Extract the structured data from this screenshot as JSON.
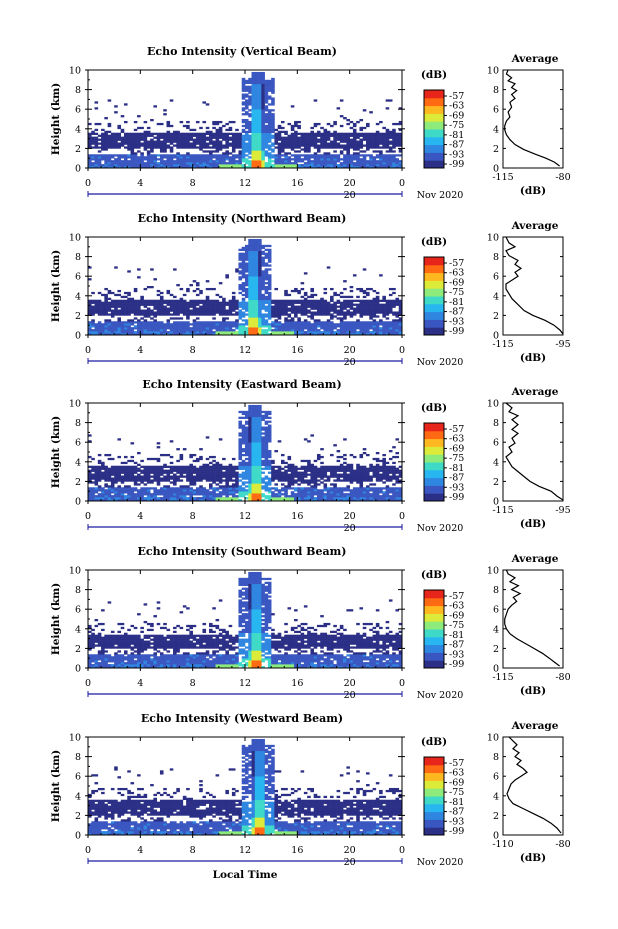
{
  "colorbar_colors": [
    "#2b2f86",
    "#3a56c0",
    "#2f86e0",
    "#27b6f0",
    "#3fd9c8",
    "#8ceb7a",
    "#dcea3a",
    "#ffb81f",
    "#ff6a12",
    "#e8251a"
  ],
  "shared": {
    "date_label": "Nov 2020",
    "day_label": "20",
    "xlabel": "Local Time",
    "ylabel": "Height (km)",
    "unit_label": "(dB)",
    "avg_title": "Average",
    "avg_xlabel": "(dB)"
  },
  "chart_data": [
    {
      "type": "heatmap",
      "title": "Echo Intensity (Vertical Beam)",
      "xlim": [
        0,
        24
      ],
      "ylim": [
        0,
        10
      ],
      "xticks": [
        "0",
        "4",
        "8",
        "12",
        "16",
        "20",
        "0"
      ],
      "yticks": [
        "0",
        "2",
        "4",
        "6",
        "8",
        "10"
      ],
      "colorbar_ticks": [
        "-57",
        "-63",
        "-69",
        "-75",
        "-81",
        "-87",
        "-93",
        "-99"
      ],
      "clutter_top_km": 3.6,
      "plume_x": 12.8,
      "profile": {
        "title": "Average",
        "xticks": [
          "-115",
          "-80"
        ],
        "xlim": [
          -115,
          -80
        ],
        "points": [
          [
            -112,
            10
          ],
          [
            -113,
            9.6
          ],
          [
            -110,
            9.2
          ],
          [
            -112,
            8.9
          ],
          [
            -108,
            8.6
          ],
          [
            -110,
            8.2
          ],
          [
            -107,
            7.9
          ],
          [
            -110,
            7.5
          ],
          [
            -108,
            7.1
          ],
          [
            -111,
            6.7
          ],
          [
            -110,
            6.2
          ],
          [
            -112,
            5.7
          ],
          [
            -111,
            5.2
          ],
          [
            -113,
            4.8
          ],
          [
            -114,
            4.3
          ],
          [
            -114,
            3.9
          ],
          [
            -113,
            3.4
          ],
          [
            -111,
            2.9
          ],
          [
            -108,
            2.4
          ],
          [
            -103,
            1.9
          ],
          [
            -96,
            1.4
          ],
          [
            -90,
            1.0
          ],
          [
            -85,
            0.6
          ],
          [
            -82,
            0.2
          ]
        ]
      }
    },
    {
      "type": "heatmap",
      "title": "Echo Intensity (Northward Beam)",
      "xlim": [
        0,
        24
      ],
      "ylim": [
        0,
        10
      ],
      "xticks": [
        "0",
        "4",
        "8",
        "12",
        "16",
        "20",
        "0"
      ],
      "yticks": [
        "0",
        "2",
        "4",
        "6",
        "8",
        "10"
      ],
      "colorbar_ticks": [
        "-57",
        "-63",
        "-69",
        "-75",
        "-81",
        "-87",
        "-93",
        "-99"
      ],
      "clutter_top_km": 3.6,
      "plume_x": 12.6,
      "profile": {
        "title": "Average",
        "xticks": [
          "-115",
          "-95"
        ],
        "xlim": [
          -115,
          -95
        ],
        "points": [
          [
            -114,
            10
          ],
          [
            -113,
            9.4
          ],
          [
            -111,
            9.0
          ],
          [
            -114,
            8.6
          ],
          [
            -113,
            8.1
          ],
          [
            -110,
            7.6
          ],
          [
            -111,
            7.2
          ],
          [
            -109,
            6.8
          ],
          [
            -111,
            6.4
          ],
          [
            -110,
            6.0
          ],
          [
            -112,
            5.6
          ],
          [
            -114,
            5.2
          ],
          [
            -114,
            4.7
          ],
          [
            -113,
            4.2
          ],
          [
            -112,
            3.7
          ],
          [
            -110,
            3.1
          ],
          [
            -108,
            2.5
          ],
          [
            -105,
            2.0
          ],
          [
            -101,
            1.5
          ],
          [
            -98,
            1.0
          ],
          [
            -96,
            0.5
          ],
          [
            -95,
            0.1
          ]
        ]
      }
    },
    {
      "type": "heatmap",
      "title": "Echo Intensity (Eastward Beam)",
      "xlim": [
        0,
        24
      ],
      "ylim": [
        0,
        10
      ],
      "xticks": [
        "0",
        "4",
        "8",
        "12",
        "16",
        "20",
        "0"
      ],
      "yticks": [
        "0",
        "2",
        "4",
        "6",
        "8",
        "10"
      ],
      "colorbar_ticks": [
        "-57",
        "-63",
        "-69",
        "-75",
        "-81",
        "-87",
        "-93",
        "-99"
      ],
      "clutter_top_km": 3.6,
      "plume_x": 12.7,
      "profile": {
        "title": "Average",
        "xticks": [
          "-115",
          "-95"
        ],
        "xlim": [
          -115,
          -95
        ],
        "points": [
          [
            -114,
            10
          ],
          [
            -112,
            9.5
          ],
          [
            -113,
            9.1
          ],
          [
            -110,
            8.7
          ],
          [
            -112,
            8.3
          ],
          [
            -110,
            7.8
          ],
          [
            -112,
            7.3
          ],
          [
            -110,
            6.9
          ],
          [
            -112,
            6.4
          ],
          [
            -111,
            5.9
          ],
          [
            -113,
            5.5
          ],
          [
            -112,
            5.0
          ],
          [
            -114,
            4.5
          ],
          [
            -113,
            4.0
          ],
          [
            -112,
            3.5
          ],
          [
            -110,
            3.0
          ],
          [
            -108,
            2.5
          ],
          [
            -106,
            2.0
          ],
          [
            -103,
            1.5
          ],
          [
            -99,
            1.0
          ],
          [
            -97,
            0.5
          ],
          [
            -95,
            0.1
          ]
        ]
      }
    },
    {
      "type": "heatmap",
      "title": "Echo Intensity (Southward Beam)",
      "xlim": [
        0,
        24
      ],
      "ylim": [
        0,
        10
      ],
      "xticks": [
        "0",
        "4",
        "8",
        "12",
        "16",
        "20",
        "0"
      ],
      "yticks": [
        "0",
        "2",
        "4",
        "6",
        "8",
        "10"
      ],
      "colorbar_ticks": [
        "-57",
        "-63",
        "-69",
        "-75",
        "-81",
        "-87",
        "-93",
        "-99"
      ],
      "clutter_top_km": 3.4,
      "plume_x": 12.7,
      "profile": {
        "title": "Average",
        "xticks": [
          "-115",
          "-80"
        ],
        "xlim": [
          -115,
          -80
        ],
        "points": [
          [
            -113,
            10
          ],
          [
            -112,
            9.6
          ],
          [
            -108,
            9.2
          ],
          [
            -111,
            8.8
          ],
          [
            -106,
            8.4
          ],
          [
            -110,
            8.0
          ],
          [
            -105,
            7.6
          ],
          [
            -109,
            7.2
          ],
          [
            -107,
            6.8
          ],
          [
            -110,
            6.4
          ],
          [
            -112,
            6.0
          ],
          [
            -113,
            5.5
          ],
          [
            -114,
            5.0
          ],
          [
            -114,
            4.5
          ],
          [
            -113,
            4.0
          ],
          [
            -111,
            3.5
          ],
          [
            -107,
            3.0
          ],
          [
            -102,
            2.5
          ],
          [
            -97,
            2.0
          ],
          [
            -92,
            1.5
          ],
          [
            -88,
            1.0
          ],
          [
            -85,
            0.6
          ],
          [
            -82,
            0.2
          ]
        ]
      }
    },
    {
      "type": "heatmap",
      "title": "Echo Intensity (Westward Beam)",
      "xlim": [
        0,
        24
      ],
      "ylim": [
        0,
        10
      ],
      "xticks": [
        "0",
        "4",
        "8",
        "12",
        "16",
        "20",
        "0"
      ],
      "yticks": [
        "0",
        "2",
        "4",
        "6",
        "8",
        "10"
      ],
      "colorbar_ticks": [
        "-57",
        "-63",
        "-69",
        "-75",
        "-81",
        "-87",
        "-93",
        "-99"
      ],
      "clutter_top_km": 3.6,
      "plume_x": 12.9,
      "profile": {
        "title": "Average",
        "xticks": [
          "-110",
          "-80"
        ],
        "xlim": [
          -110,
          -80
        ],
        "points": [
          [
            -107,
            10
          ],
          [
            -105,
            9.6
          ],
          [
            -103,
            9.2
          ],
          [
            -105,
            8.8
          ],
          [
            -102,
            8.4
          ],
          [
            -104,
            8.0
          ],
          [
            -101,
            7.6
          ],
          [
            -103,
            7.2
          ],
          [
            -100,
            6.8
          ],
          [
            -98,
            6.4
          ],
          [
            -101,
            6.0
          ],
          [
            -104,
            5.6
          ],
          [
            -106,
            5.2
          ],
          [
            -107,
            4.7
          ],
          [
            -108,
            4.2
          ],
          [
            -107,
            3.7
          ],
          [
            -105,
            3.2
          ],
          [
            -100,
            2.7
          ],
          [
            -95,
            2.2
          ],
          [
            -90,
            1.7
          ],
          [
            -86,
            1.2
          ],
          [
            -83,
            0.7
          ],
          [
            -81,
            0.2
          ]
        ]
      }
    }
  ]
}
